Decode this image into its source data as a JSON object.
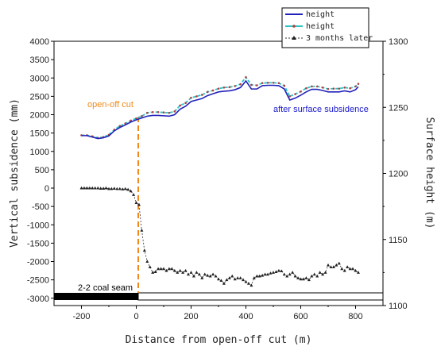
{
  "chart_data": {
    "type": "line",
    "xlabel": "Distance from open-off cut (m)",
    "ylabel_left": "Vertical subsidence (mm)",
    "ylabel_right": "Surface height (m)",
    "xlim": [
      -300,
      900
    ],
    "ylim_left": [
      -3200,
      4000
    ],
    "ylim_right": [
      1100,
      1300
    ],
    "x_ticks": [
      "-200",
      "0",
      "200",
      "400",
      "600",
      "800"
    ],
    "y_left_ticks": [
      "-3000",
      "-2500",
      "-2000",
      "-1500",
      "-1000",
      "-500",
      "0",
      "500",
      "1000",
      "1500",
      "2000",
      "2500",
      "3000",
      "3500",
      "4000"
    ],
    "y_right_ticks": [
      "1100",
      "1150",
      "1200",
      "1250",
      "1300"
    ],
    "legend": [
      "height",
      "height",
      "3 months later"
    ],
    "legend_position": "top-right",
    "grid": false,
    "colors": {
      "height_before": "#2222bb",
      "height_after": "#2ec4c4",
      "height_after_marker": "#b04040",
      "subsidence": "#333333",
      "cut_line": "#f08a1e",
      "coal_seam": "#000000"
    },
    "annotations": {
      "cut_label": "open-off cut",
      "surface_label": "after surface subsidence",
      "seam_label": "2-2 coal seam"
    },
    "series": [
      {
        "name": "height",
        "axis": "left",
        "x": [
          -200,
          -180,
          -160,
          -140,
          -120,
          -100,
          -80,
          -60,
          -40,
          -20,
          0,
          20,
          40,
          60,
          80,
          100,
          120,
          140,
          160,
          180,
          200,
          220,
          240,
          260,
          280,
          300,
          320,
          340,
          360,
          380,
          400,
          420,
          440,
          460,
          480,
          500,
          520,
          540,
          560,
          580,
          600,
          620,
          640,
          660,
          680,
          700,
          720,
          740,
          760,
          780,
          800,
          810
        ],
        "y": [
          1430,
          1430,
          1390,
          1350,
          1370,
          1420,
          1560,
          1650,
          1720,
          1800,
          1860,
          1910,
          1960,
          1980,
          1980,
          1970,
          1960,
          2000,
          2150,
          2230,
          2360,
          2400,
          2440,
          2520,
          2570,
          2620,
          2640,
          2650,
          2680,
          2740,
          2920,
          2700,
          2700,
          2790,
          2800,
          2800,
          2790,
          2700,
          2400,
          2450,
          2530,
          2620,
          2690,
          2690,
          2660,
          2620,
          2620,
          2620,
          2650,
          2620,
          2680,
          2760
        ]
      },
      {
        "name": "height",
        "axis": "left",
        "x": [
          -200,
          -180,
          -160,
          -140,
          -120,
          -100,
          -80,
          -60,
          -40,
          -20,
          0,
          20,
          40,
          60,
          80,
          100,
          120,
          140,
          160,
          180,
          200,
          220,
          240,
          260,
          280,
          300,
          320,
          340,
          360,
          380,
          400,
          420,
          440,
          460,
          480,
          500,
          520,
          540,
          560,
          580,
          600,
          620,
          640,
          660,
          680,
          700,
          720,
          740,
          760,
          780,
          800,
          810
        ],
        "y": [
          1440,
          1440,
          1410,
          1370,
          1390,
          1450,
          1590,
          1690,
          1760,
          1840,
          1900,
          1960,
          2050,
          2070,
          2070,
          2060,
          2050,
          2090,
          2250,
          2320,
          2460,
          2500,
          2540,
          2620,
          2660,
          2710,
          2740,
          2750,
          2780,
          2830,
          3020,
          2810,
          2800,
          2860,
          2870,
          2870,
          2860,
          2790,
          2500,
          2560,
          2630,
          2720,
          2770,
          2770,
          2740,
          2700,
          2710,
          2710,
          2740,
          2720,
          2770,
          2840
        ]
      },
      {
        "name": "3 months later",
        "axis": "left",
        "x": [
          -200,
          -190,
          -180,
          -170,
          -160,
          -150,
          -140,
          -130,
          -120,
          -110,
          -100,
          -90,
          -80,
          -70,
          -60,
          -50,
          -40,
          -30,
          -20,
          -10,
          0,
          10,
          20,
          30,
          40,
          50,
          60,
          70,
          80,
          90,
          100,
          110,
          120,
          130,
          140,
          150,
          160,
          170,
          180,
          190,
          200,
          210,
          220,
          230,
          240,
          250,
          260,
          270,
          280,
          290,
          300,
          310,
          320,
          330,
          340,
          350,
          360,
          370,
          380,
          390,
          400,
          410,
          420,
          430,
          440,
          450,
          460,
          470,
          480,
          490,
          500,
          510,
          520,
          530,
          540,
          550,
          560,
          570,
          580,
          590,
          600,
          610,
          620,
          630,
          640,
          650,
          660,
          670,
          680,
          690,
          700,
          710,
          720,
          730,
          740,
          750,
          760,
          770,
          780,
          790,
          800,
          810
        ],
        "y": [
          0,
          0,
          0,
          0,
          0,
          0,
          0,
          -10,
          -10,
          0,
          -20,
          -20,
          -10,
          -20,
          -20,
          -30,
          -20,
          -40,
          -80,
          -180,
          -400,
          -450,
          -1150,
          -1700,
          -2000,
          -2150,
          -2300,
          -2280,
          -2200,
          -2200,
          -2200,
          -2250,
          -2200,
          -2200,
          -2250,
          -2300,
          -2250,
          -2300,
          -2250,
          -2350,
          -2300,
          -2400,
          -2300,
          -2350,
          -2450,
          -2350,
          -2380,
          -2400,
          -2350,
          -2400,
          -2480,
          -2520,
          -2600,
          -2500,
          -2450,
          -2400,
          -2480,
          -2450,
          -2450,
          -2500,
          -2550,
          -2600,
          -2650,
          -2450,
          -2400,
          -2400,
          -2380,
          -2350,
          -2350,
          -2320,
          -2300,
          -2280,
          -2250,
          -2260,
          -2350,
          -2400,
          -2350,
          -2300,
          -2400,
          -2450,
          -2480,
          -2480,
          -2450,
          -2500,
          -2400,
          -2350,
          -2400,
          -2300,
          -2350,
          -2300,
          -2100,
          -2150,
          -2150,
          -2100,
          -2050,
          -2200,
          -2250,
          -2150,
          -2200,
          -2200,
          -2250,
          -2300
        ]
      }
    ]
  }
}
